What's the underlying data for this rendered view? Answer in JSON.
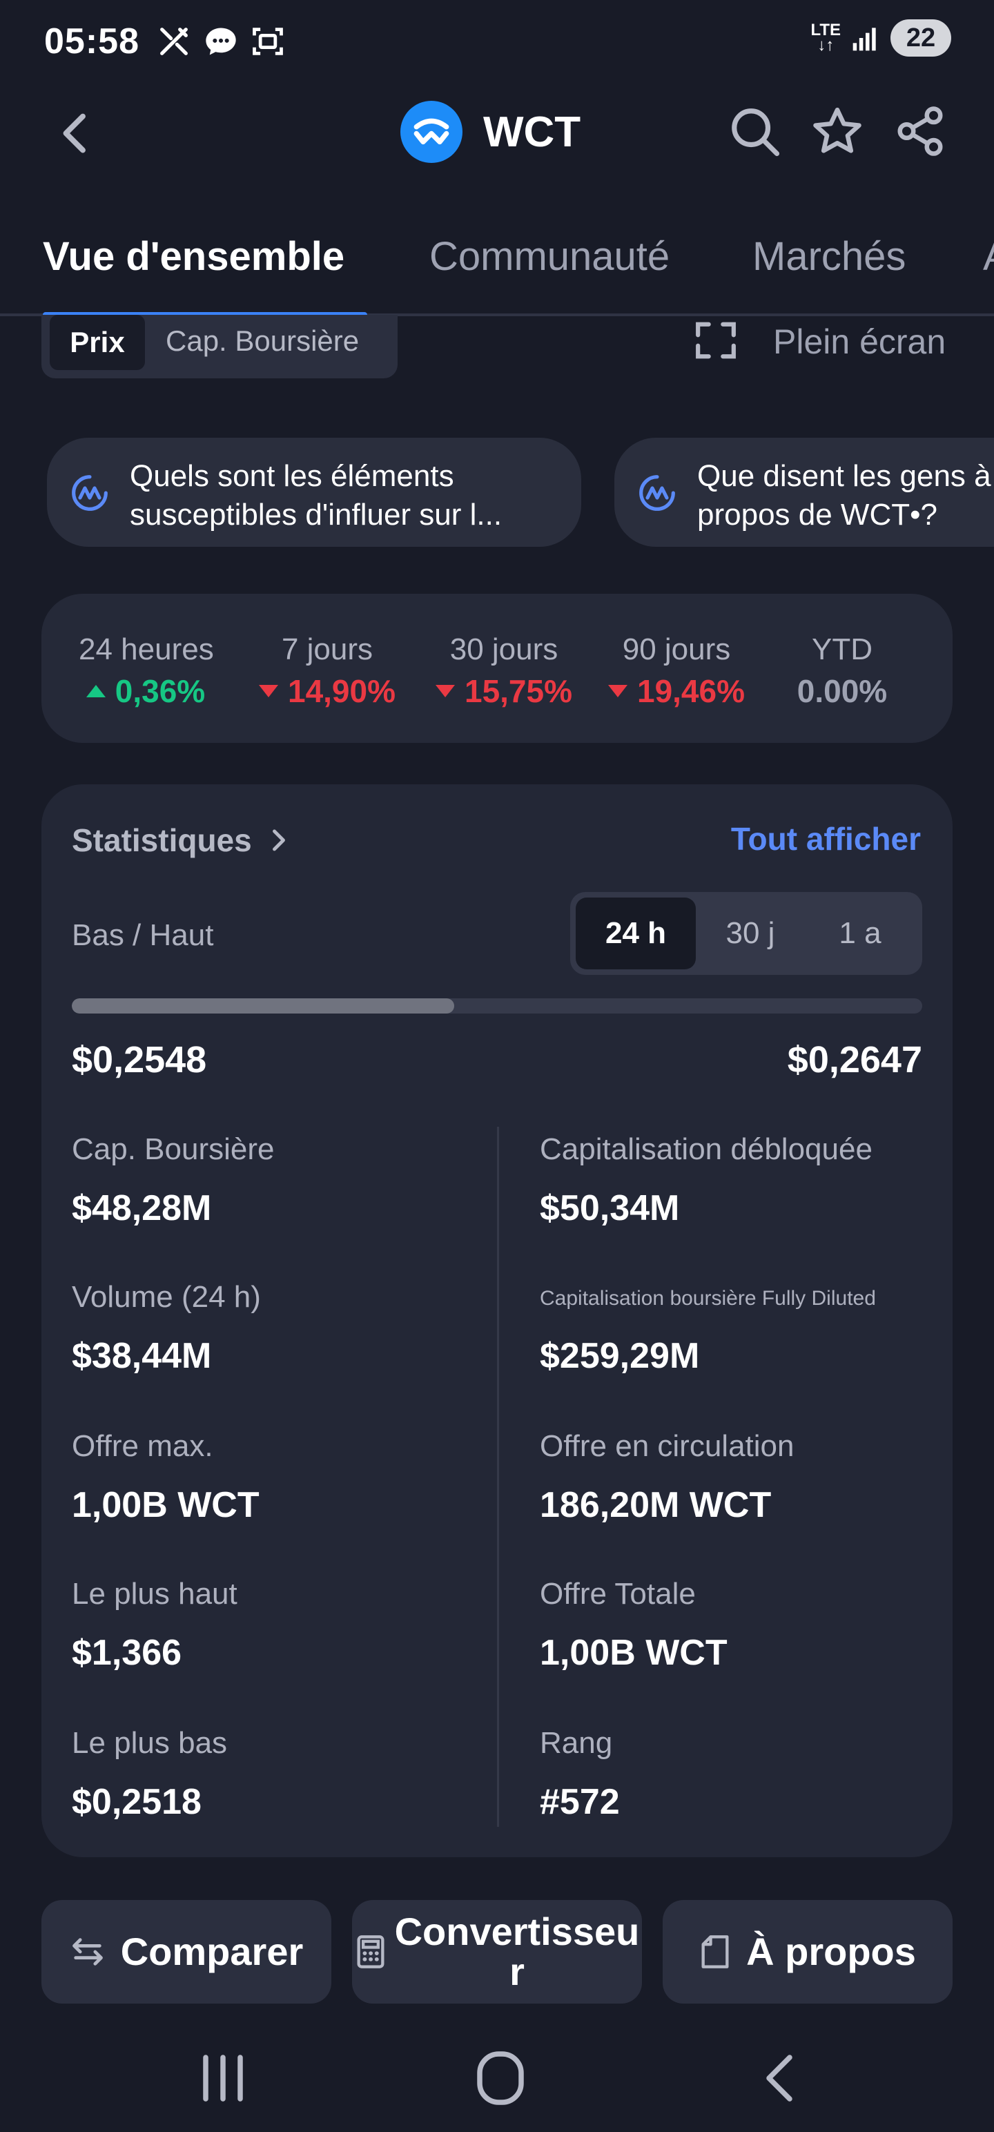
{
  "status_bar": {
    "time": "05:58",
    "network": "LTE",
    "battery": "22"
  },
  "header": {
    "coin": "WCT"
  },
  "tabs": [
    {
      "label": "Vue d'ensemble",
      "active": true
    },
    {
      "label": "Communauté"
    },
    {
      "label": "Marchés"
    },
    {
      "label": "A"
    }
  ],
  "chart_toggle": {
    "prix": "Prix",
    "cap": "Cap. Boursière",
    "fullscreen": "Plein écran"
  },
  "prompts": [
    {
      "text": "Quels sont les éléments susceptibles d'influer sur l..."
    },
    {
      "text": "Que disent les gens à propos de WCT•?"
    }
  ],
  "performance": [
    {
      "label": "24 heures",
      "value": "0,36%",
      "direction": "up"
    },
    {
      "label": "7 jours",
      "value": "14,90%",
      "direction": "down"
    },
    {
      "label": "30 jours",
      "value": "15,75%",
      "direction": "down"
    },
    {
      "label": "90 jours",
      "value": "19,46%",
      "direction": "down"
    },
    {
      "label": "YTD",
      "value": "0.00%",
      "direction": "flat"
    }
  ],
  "stats": {
    "title": "Statistiques",
    "see_all": "Tout afficher",
    "low_high_label": "Bas / Haut",
    "ranges": [
      "24 h",
      "30 j",
      "1 a"
    ],
    "selected_range": "24 h",
    "low": "$0,2548",
    "high": "$0,2647",
    "position_fraction": 0.45,
    "left": [
      {
        "label": "Cap. Boursière",
        "value": "$48,28M"
      },
      {
        "label": "Volume (24 h)",
        "value": "$38,44M"
      },
      {
        "label": "Offre max.",
        "value": "1,00B WCT"
      },
      {
        "label": "Le plus haut",
        "value": "$1,366"
      },
      {
        "label": "Le plus bas",
        "value": "$0,2518"
      }
    ],
    "right": [
      {
        "label": "Capitalisation débloquée",
        "value": "$50,34M"
      },
      {
        "label": "Capitalisation boursière Fully Diluted",
        "value": "$259,29M"
      },
      {
        "label": "Offre en circulation",
        "value": "186,20M WCT"
      },
      {
        "label": "Offre Totale",
        "value": "1,00B WCT"
      },
      {
        "label": "Rang",
        "value": "#572"
      }
    ]
  },
  "bottom_actions": {
    "compare": "Comparer",
    "converter_line1": "Convertisseu",
    "converter_line2": "r",
    "about": "À propos"
  },
  "colors": {
    "up": "#16c784",
    "down": "#ea3943",
    "accent": "#3b82f6",
    "link": "#5b8af7"
  }
}
